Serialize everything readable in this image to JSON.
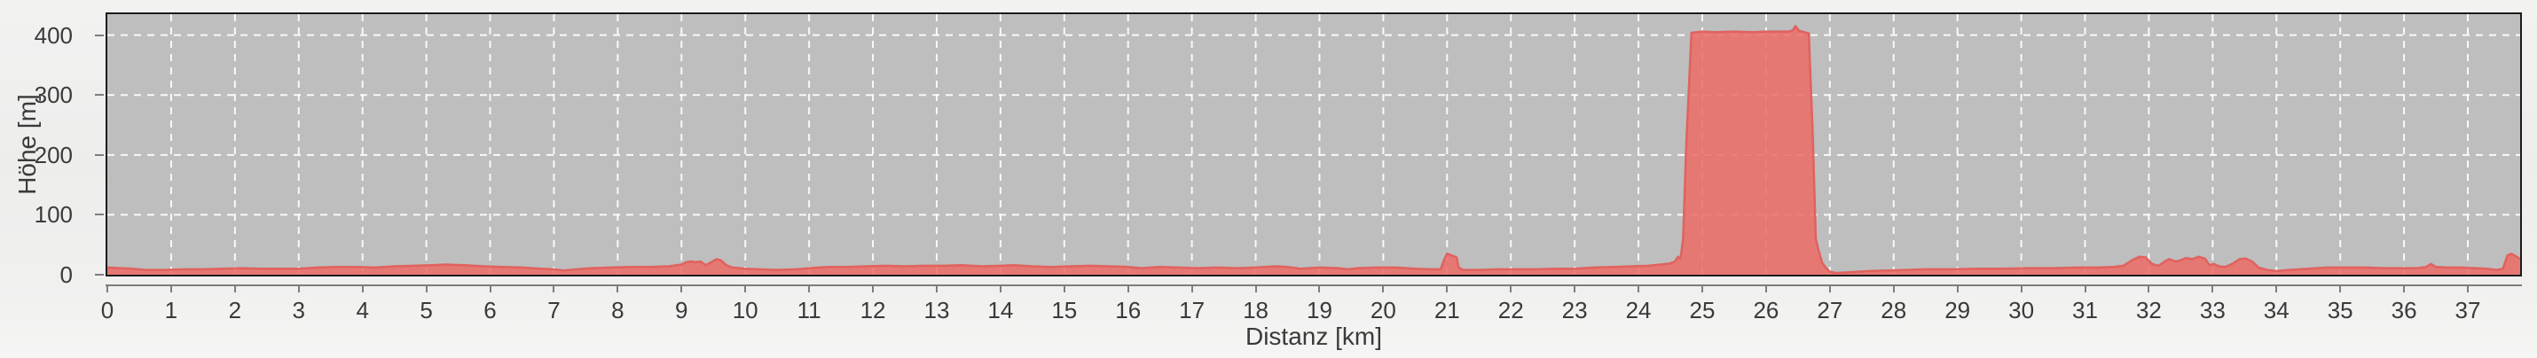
{
  "colors": {
    "page_bg": "#f0f0ef",
    "plot_bg": "#bebebe",
    "plot_border": "#1c1c1c",
    "grid": "#ffffff",
    "area_fill": "#ec6e6a",
    "area_fill_opacity": 0.88,
    "area_edge": "#e05f5b",
    "axis": "#7d7d7d",
    "label": "#3a3a3a"
  },
  "chart_data": {
    "type": "area",
    "title": "",
    "xlabel": "Distanz [km]",
    "ylabel": "Höhe [m]",
    "xlim": [
      0,
      37.82
    ],
    "ylim": [
      0,
      435
    ],
    "x_ticks": [
      0,
      1,
      2,
      3,
      4,
      5,
      6,
      7,
      8,
      9,
      10,
      11,
      12,
      13,
      14,
      15,
      16,
      17,
      18,
      19,
      20,
      21,
      22,
      23,
      24,
      25,
      26,
      27,
      28,
      29,
      30,
      31,
      32,
      33,
      34,
      35,
      36,
      37
    ],
    "y_ticks": [
      0,
      100,
      200,
      300,
      400
    ],
    "grid": "dashed-white-both-axes",
    "legend": "none",
    "series": [
      {
        "name": "Höhe",
        "points": [
          [
            0,
            12
          ],
          [
            0.2,
            11
          ],
          [
            0.4,
            10
          ],
          [
            0.6,
            8
          ],
          [
            0.9,
            8
          ],
          [
            1.2,
            9
          ],
          [
            1.5,
            9
          ],
          [
            1.8,
            10
          ],
          [
            2.1,
            11
          ],
          [
            2.4,
            10
          ],
          [
            2.7,
            10
          ],
          [
            3.0,
            10
          ],
          [
            3.3,
            12
          ],
          [
            3.6,
            13
          ],
          [
            3.9,
            13
          ],
          [
            4.2,
            12
          ],
          [
            4.5,
            14
          ],
          [
            4.8,
            15
          ],
          [
            5.1,
            16
          ],
          [
            5.3,
            17
          ],
          [
            5.6,
            16
          ],
          [
            5.9,
            14
          ],
          [
            6.2,
            13
          ],
          [
            6.5,
            12
          ],
          [
            6.8,
            10
          ],
          [
            7.0,
            9
          ],
          [
            7.15,
            7
          ],
          [
            7.35,
            9
          ],
          [
            7.6,
            11
          ],
          [
            7.9,
            12
          ],
          [
            8.2,
            13
          ],
          [
            8.5,
            13
          ],
          [
            8.8,
            14
          ],
          [
            9.0,
            17
          ],
          [
            9.08,
            21
          ],
          [
            9.15,
            22
          ],
          [
            9.22,
            21
          ],
          [
            9.3,
            22
          ],
          [
            9.38,
            16
          ],
          [
            9.45,
            20
          ],
          [
            9.55,
            26
          ],
          [
            9.62,
            24
          ],
          [
            9.7,
            16
          ],
          [
            9.8,
            12
          ],
          [
            10.0,
            10
          ],
          [
            10.2,
            9
          ],
          [
            10.5,
            8
          ],
          [
            10.8,
            9
          ],
          [
            11.0,
            11
          ],
          [
            11.3,
            13
          ],
          [
            11.6,
            13
          ],
          [
            11.9,
            14
          ],
          [
            12.2,
            15
          ],
          [
            12.5,
            14
          ],
          [
            12.8,
            15
          ],
          [
            13.1,
            15
          ],
          [
            13.4,
            16
          ],
          [
            13.7,
            14
          ],
          [
            14.0,
            15
          ],
          [
            14.2,
            16
          ],
          [
            14.5,
            14
          ],
          [
            14.8,
            13
          ],
          [
            15.1,
            14
          ],
          [
            15.4,
            15
          ],
          [
            15.7,
            14
          ],
          [
            16.0,
            13
          ],
          [
            16.2,
            11
          ],
          [
            16.5,
            13
          ],
          [
            16.8,
            12
          ],
          [
            17.1,
            11
          ],
          [
            17.4,
            12
          ],
          [
            17.7,
            11
          ],
          [
            18.0,
            12
          ],
          [
            18.3,
            14
          ],
          [
            18.5,
            13
          ],
          [
            18.7,
            10
          ],
          [
            19.0,
            12
          ],
          [
            19.3,
            11
          ],
          [
            19.45,
            9
          ],
          [
            19.6,
            11
          ],
          [
            19.9,
            12
          ],
          [
            20.2,
            12
          ],
          [
            20.5,
            10
          ],
          [
            20.75,
            9
          ],
          [
            20.9,
            9
          ],
          [
            20.95,
            24
          ],
          [
            21.0,
            35
          ],
          [
            21.08,
            32
          ],
          [
            21.15,
            29
          ],
          [
            21.18,
            12
          ],
          [
            21.25,
            8
          ],
          [
            21.5,
            8
          ],
          [
            21.8,
            9
          ],
          [
            22.1,
            9
          ],
          [
            22.4,
            9
          ],
          [
            22.7,
            10
          ],
          [
            23.0,
            10
          ],
          [
            23.3,
            12
          ],
          [
            23.6,
            13
          ],
          [
            23.9,
            14
          ],
          [
            24.15,
            15
          ],
          [
            24.35,
            17
          ],
          [
            24.5,
            19
          ],
          [
            24.57,
            22
          ],
          [
            24.62,
            30
          ],
          [
            24.66,
            27
          ],
          [
            24.7,
            60
          ],
          [
            24.75,
            220
          ],
          [
            24.83,
            404
          ],
          [
            25.0,
            406
          ],
          [
            25.2,
            405
          ],
          [
            25.5,
            406
          ],
          [
            25.8,
            405
          ],
          [
            26.0,
            406
          ],
          [
            26.2,
            406
          ],
          [
            26.36,
            406
          ],
          [
            26.42,
            408
          ],
          [
            26.46,
            415
          ],
          [
            26.52,
            407
          ],
          [
            26.6,
            405
          ],
          [
            26.67,
            403
          ],
          [
            26.73,
            240
          ],
          [
            26.78,
            60
          ],
          [
            26.82,
            42
          ],
          [
            26.88,
            20
          ],
          [
            26.95,
            10
          ],
          [
            27.0,
            5
          ],
          [
            27.1,
            3
          ],
          [
            27.3,
            4
          ],
          [
            27.6,
            6
          ],
          [
            27.9,
            7
          ],
          [
            28.2,
            8
          ],
          [
            28.5,
            9
          ],
          [
            28.9,
            9
          ],
          [
            29.3,
            10
          ],
          [
            29.7,
            10
          ],
          [
            30.1,
            11
          ],
          [
            30.5,
            11
          ],
          [
            30.9,
            12
          ],
          [
            31.2,
            12
          ],
          [
            31.45,
            13
          ],
          [
            31.6,
            15
          ],
          [
            31.75,
            25
          ],
          [
            31.85,
            30
          ],
          [
            31.95,
            29
          ],
          [
            32.05,
            18
          ],
          [
            32.15,
            15
          ],
          [
            32.25,
            22
          ],
          [
            32.32,
            26
          ],
          [
            32.42,
            22
          ],
          [
            32.5,
            24
          ],
          [
            32.58,
            28
          ],
          [
            32.68,
            26
          ],
          [
            32.78,
            30
          ],
          [
            32.88,
            27
          ],
          [
            32.95,
            16
          ],
          [
            33.02,
            18
          ],
          [
            33.1,
            14
          ],
          [
            33.2,
            13
          ],
          [
            33.32,
            19
          ],
          [
            33.42,
            26
          ],
          [
            33.52,
            27
          ],
          [
            33.62,
            22
          ],
          [
            33.72,
            12
          ],
          [
            33.85,
            8
          ],
          [
            34.0,
            6
          ],
          [
            34.2,
            8
          ],
          [
            34.5,
            10
          ],
          [
            34.8,
            12
          ],
          [
            35.1,
            12
          ],
          [
            35.4,
            12
          ],
          [
            35.7,
            11
          ],
          [
            36.0,
            11
          ],
          [
            36.2,
            11
          ],
          [
            36.35,
            13
          ],
          [
            36.42,
            18
          ],
          [
            36.5,
            13
          ],
          [
            36.7,
            12
          ],
          [
            36.9,
            12
          ],
          [
            37.1,
            11
          ],
          [
            37.3,
            10
          ],
          [
            37.45,
            8
          ],
          [
            37.55,
            10
          ],
          [
            37.62,
            32
          ],
          [
            37.68,
            35
          ],
          [
            37.75,
            31
          ],
          [
            37.82,
            26
          ]
        ]
      }
    ]
  }
}
